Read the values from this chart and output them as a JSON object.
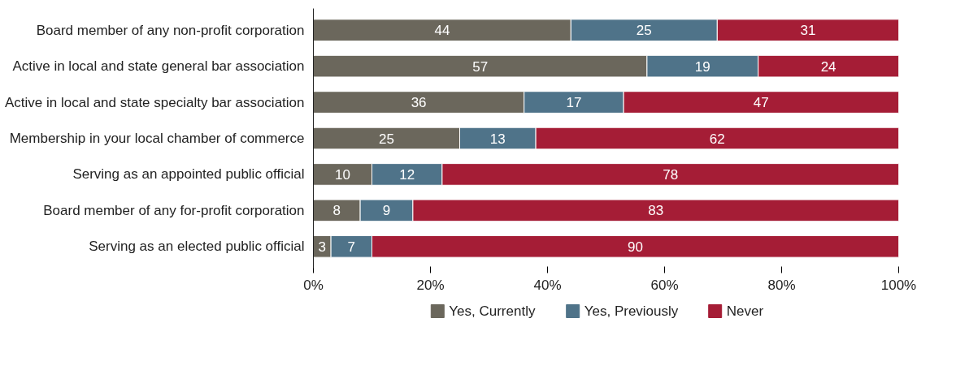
{
  "chart_data": {
    "type": "bar",
    "orientation": "horizontal",
    "stacked": true,
    "data_labels": true,
    "grid": false,
    "legend": "bottom",
    "categories": [
      "Board member of any non-profit corporation",
      "Active in local and state general bar association",
      "Active in local and state specialty bar association",
      "Membership in your local chamber of commerce",
      "Serving as an appointed public official",
      "Board member of any for-profit corporation",
      "Serving as an elected public official"
    ],
    "series": [
      {
        "name": "Yes, Currently",
        "color": "#6b675c",
        "values": [
          44,
          57,
          36,
          25,
          10,
          8,
          3
        ]
      },
      {
        "name": "Yes, Previously",
        "color": "#4f7389",
        "values": [
          25,
          19,
          17,
          13,
          12,
          9,
          7
        ]
      },
      {
        "name": "Never",
        "color": "#a51d36",
        "values": [
          31,
          24,
          47,
          62,
          78,
          83,
          90
        ]
      }
    ],
    "xlim": [
      0,
      100
    ],
    "xticks": [
      {
        "value": 0,
        "label": "0%"
      },
      {
        "value": 20,
        "label": "20%"
      },
      {
        "value": 40,
        "label": "40%"
      },
      {
        "value": 60,
        "label": "60%"
      },
      {
        "value": 80,
        "label": "80%"
      },
      {
        "value": 100,
        "label": "100%"
      }
    ]
  }
}
